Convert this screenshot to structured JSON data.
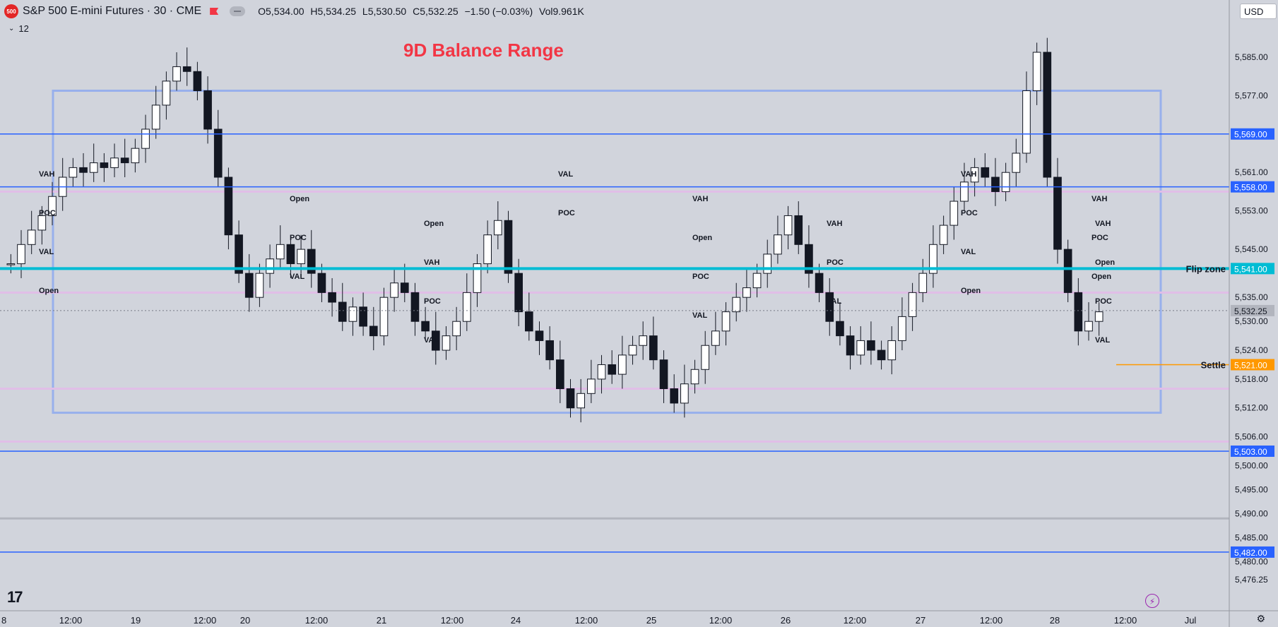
{
  "header": {
    "symbol_badge": "500",
    "title": "S&P 500 E-mini Futures · 30 · CME",
    "ohlc": {
      "open": "O5,534.00",
      "high": "H5,534.25",
      "low": "L5,530.50",
      "close": "C5,532.25",
      "change": "−1.50 (−0.03%)",
      "volume": "Vol9.961K"
    },
    "indicator_count": "12",
    "currency": "USD"
  },
  "chart_title": "9D Balance Range",
  "colors": {
    "background": "#d1d4dc",
    "blue_line": "#2962ff",
    "flip_zone": "#00bcd4",
    "settle": "#ff9800",
    "title_red": "#f23645",
    "box": "#98b0ec"
  },
  "chart_data": {
    "type": "candlestick",
    "title": "9D Balance Range",
    "ylim": [
      5472,
      5591
    ],
    "y_ticks": [
      "5,585.00",
      "5,577.00",
      "5,561.00",
      "5,553.00",
      "5,545.00",
      "5,535.00",
      "5,530.00",
      "5,524.00",
      "5,518.00",
      "5,512.00",
      "5,506.00",
      "5,500.00",
      "5,495.00",
      "5,490.00",
      "5,485.00",
      "5,480.00",
      "5,476.25"
    ],
    "x_ticks": [
      "8",
      "12:00",
      "19",
      "12:00",
      "20",
      "12:00",
      "21",
      "12:00",
      "24",
      "12:00",
      "25",
      "12:00",
      "26",
      "12:00",
      "27",
      "12:00",
      "28",
      "12:00",
      "Jul"
    ],
    "levels": [
      {
        "price": 5569,
        "label": "5,569.00",
        "color": "#2962ff"
      },
      {
        "price": 5558,
        "label": "5,558.00",
        "color": "#2962ff"
      },
      {
        "price": 5541,
        "label": "5,541.00",
        "color": "#00bcd4",
        "name": "Flip zone"
      },
      {
        "price": 5503,
        "label": "5,503.00",
        "color": "#2962ff"
      },
      {
        "price": 5482,
        "label": "5,482.00",
        "color": "#2962ff"
      },
      {
        "price": 5521,
        "label": "5,521.00",
        "color": "#ff9800",
        "name": "Settle"
      },
      {
        "price": 5532.25,
        "label": "5,532.25",
        "color": "#787b86"
      }
    ],
    "balance_box": {
      "high": 5578,
      "low": 5511
    },
    "profile_labels": [
      {
        "session": 1,
        "labels": [
          "VAH",
          "POC",
          "VAL",
          "Open"
        ]
      },
      {
        "session": 2,
        "labels": [
          "Open",
          "POC",
          "VAL"
        ]
      },
      {
        "session": 3,
        "labels": [
          "Open",
          "VAH",
          "POC",
          "VAL"
        ]
      },
      {
        "session": 4,
        "labels": [
          "VAL",
          "POC"
        ]
      },
      {
        "session": 5,
        "labels": [
          "VAH",
          "Open",
          "POC",
          "VAL"
        ]
      },
      {
        "session": 6,
        "labels": [
          "VAH",
          "POC",
          "VAL"
        ]
      },
      {
        "session": 7,
        "labels": [
          "VAH",
          "POC",
          "VAL",
          "Open"
        ]
      },
      {
        "session": 8,
        "labels": [
          "VAH",
          "POC",
          "Open"
        ]
      },
      {
        "session": 9,
        "labels": [
          "VAH",
          "Open",
          "POC",
          "VAL"
        ]
      }
    ],
    "close_series": [
      5542,
      5546,
      5549,
      5552,
      5556,
      5560,
      5562,
      5561,
      5563,
      5562,
      5564,
      5563,
      5566,
      5570,
      5575,
      5580,
      5583,
      5582,
      5578,
      5570,
      5560,
      5548,
      5540,
      5535,
      5540,
      5543,
      5546,
      5542,
      5545,
      5540,
      5536,
      5534,
      5530,
      5533,
      5529,
      5527,
      5535,
      5538,
      5536,
      5530,
      5528,
      5524,
      5527,
      5530,
      5536,
      5542,
      5548,
      5551,
      5540,
      5532,
      5528,
      5526,
      5522,
      5516,
      5512,
      5515,
      5518,
      5521,
      5519,
      5523,
      5525,
      5527,
      5522,
      5516,
      5513,
      5517,
      5520,
      5525,
      5528,
      5532,
      5535,
      5537,
      5540,
      5544,
      5548,
      5552,
      5546,
      5540,
      5536,
      5530,
      5527,
      5523,
      5526,
      5524,
      5522,
      5526,
      5531,
      5536,
      5540,
      5546,
      5550,
      5555,
      5559,
      5562,
      5560,
      5557,
      5561,
      5565,
      5578,
      5586,
      5560,
      5545,
      5536,
      5528,
      5530,
      5532
    ]
  }
}
